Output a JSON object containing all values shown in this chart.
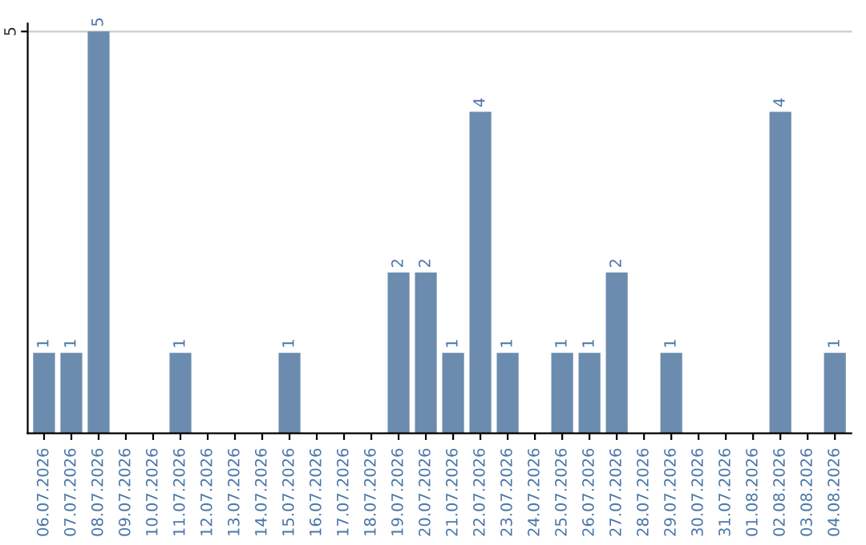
{
  "chart_data": {
    "type": "bar",
    "categories": [
      "06.07.2026",
      "07.07.2026",
      "08.07.2026",
      "09.07.2026",
      "10.07.2026",
      "11.07.2026",
      "12.07.2026",
      "13.07.2026",
      "14.07.2026",
      "15.07.2026",
      "16.07.2026",
      "17.07.2026",
      "18.07.2026",
      "19.07.2026",
      "20.07.2026",
      "21.07.2026",
      "22.07.2026",
      "23.07.2026",
      "24.07.2026",
      "25.07.2026",
      "26.07.2026",
      "27.07.2026",
      "28.07.2026",
      "29.07.2026",
      "30.07.2026",
      "31.07.2026",
      "01.08.2026",
      "02.08.2026",
      "03.08.2026",
      "04.08.2026"
    ],
    "values": [
      1,
      1,
      5,
      0,
      0,
      1,
      0,
      0,
      0,
      1,
      0,
      0,
      0,
      2,
      2,
      1,
      4,
      1,
      0,
      1,
      1,
      2,
      0,
      1,
      0,
      0,
      0,
      4,
      0,
      1
    ],
    "value_labels": [
      "1",
      "1",
      "5",
      null,
      null,
      "1",
      null,
      null,
      null,
      "1",
      null,
      null,
      null,
      "2",
      "2",
      "1",
      "4",
      "1",
      null,
      "1",
      "1",
      "2",
      null,
      "1",
      null,
      null,
      null,
      "4",
      null,
      "1"
    ],
    "color": "#6b8cae",
    "ylim": [
      0,
      5.1
    ],
    "yticks": [
      5
    ],
    "grid": "y"
  }
}
